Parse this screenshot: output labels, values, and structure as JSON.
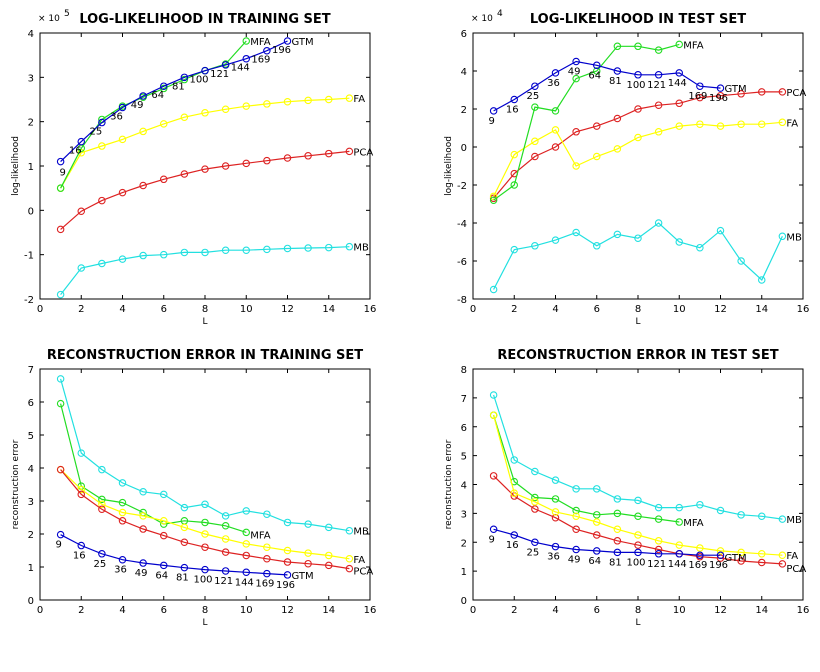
{
  "colors": {
    "GTM": "#0000cc",
    "MFA": "#22dd22",
    "FA": "#ffff00",
    "PCA": "#dd2222",
    "MB": "#22e0e0"
  },
  "chart_data": [
    {
      "type": "line",
      "title": "LOG-LIKELIHOOD IN TRAINING SET",
      "xlabel": "L",
      "ylabel": "log-likelihood",
      "y_exponent": "× 10",
      "y_exponent_power": "5",
      "xlim": [
        0,
        16
      ],
      "ylim": [
        -2,
        4
      ],
      "xticks": [
        0,
        2,
        4,
        6,
        8,
        10,
        12,
        14,
        16
      ],
      "yticks": [
        -2,
        -1,
        0,
        1,
        2,
        3,
        4
      ],
      "grid": false,
      "series": [
        {
          "name": "MB",
          "color_key": "MB",
          "x": [
            1,
            2,
            3,
            4,
            5,
            6,
            7,
            8,
            9,
            10,
            11,
            12,
            13,
            14,
            15
          ],
          "y": [
            -1.9,
            -1.3,
            -1.2,
            -1.1,
            -1.02,
            -1.0,
            -0.95,
            -0.95,
            -0.9,
            -0.9,
            -0.88,
            -0.86,
            -0.85,
            -0.84,
            -0.82
          ]
        },
        {
          "name": "PCA",
          "color_key": "PCA",
          "x": [
            1,
            2,
            3,
            4,
            5,
            6,
            7,
            8,
            9,
            10,
            11,
            12,
            13,
            14,
            15
          ],
          "y": [
            -0.43,
            -0.02,
            0.22,
            0.4,
            0.56,
            0.7,
            0.82,
            0.93,
            1.0,
            1.06,
            1.12,
            1.18,
            1.23,
            1.28,
            1.33
          ]
        },
        {
          "name": "FA",
          "color_key": "FA",
          "x": [
            1,
            2,
            3,
            4,
            5,
            6,
            7,
            8,
            9,
            10,
            11,
            12,
            13,
            14,
            15
          ],
          "y": [
            0.5,
            1.3,
            1.45,
            1.6,
            1.78,
            1.95,
            2.1,
            2.2,
            2.28,
            2.35,
            2.4,
            2.45,
            2.48,
            2.5,
            2.53
          ]
        },
        {
          "name": "MFA",
          "color_key": "MFA",
          "x": [
            1,
            2,
            3,
            4,
            5,
            6,
            7,
            8,
            9,
            10
          ],
          "y": [
            0.5,
            1.4,
            2.05,
            2.35,
            2.55,
            2.75,
            2.95,
            3.15,
            3.3,
            3.82
          ]
        },
        {
          "name": "GTM",
          "color_key": "GTM",
          "x": [
            1,
            2,
            3,
            4,
            5,
            6,
            7,
            8,
            9,
            10,
            11,
            12
          ],
          "y": [
            1.1,
            1.55,
            1.98,
            2.32,
            2.58,
            2.8,
            3.0,
            3.15,
            3.28,
            3.42,
            3.6,
            3.82
          ]
        }
      ],
      "point_labels": {
        "series": "GTM",
        "labels": [
          "9",
          "16",
          "25",
          "36",
          "49",
          "64",
          "81",
          "100",
          "121",
          "144",
          "169",
          "196"
        ]
      }
    },
    {
      "type": "line",
      "title": "LOG-LIKELIHOOD IN TEST SET",
      "xlabel": "L",
      "ylabel": "log-likelihood",
      "y_exponent": "× 10",
      "y_exponent_power": "4",
      "xlim": [
        0,
        16
      ],
      "ylim": [
        -8,
        6
      ],
      "xticks": [
        0,
        2,
        4,
        6,
        8,
        10,
        12,
        14,
        16
      ],
      "yticks": [
        -8,
        -6,
        -4,
        -2,
        0,
        2,
        4,
        6
      ],
      "grid": false,
      "series": [
        {
          "name": "MB",
          "color_key": "MB",
          "x": [
            1,
            2,
            3,
            4,
            5,
            6,
            7,
            8,
            9,
            10,
            11,
            12,
            13,
            14,
            15
          ],
          "y": [
            -7.5,
            -5.4,
            -5.2,
            -4.9,
            -4.5,
            -5.2,
            -4.6,
            -4.8,
            -4.0,
            -5.0,
            -5.3,
            -4.4,
            -6.0,
            -7.0,
            -4.7
          ]
        },
        {
          "name": "PCA",
          "color_key": "PCA",
          "x": [
            1,
            2,
            3,
            4,
            5,
            6,
            7,
            8,
            9,
            10,
            11,
            12,
            13,
            14,
            15
          ],
          "y": [
            -2.7,
            -1.4,
            -0.5,
            0.0,
            0.8,
            1.1,
            1.5,
            2.0,
            2.2,
            2.3,
            2.6,
            2.7,
            2.8,
            2.9,
            2.9
          ]
        },
        {
          "name": "FA",
          "color_key": "FA",
          "x": [
            1,
            2,
            3,
            4,
            5,
            6,
            7,
            8,
            9,
            10,
            11,
            12,
            13,
            14,
            15
          ],
          "y": [
            -2.6,
            -0.4,
            0.3,
            0.9,
            -1.0,
            -0.5,
            -0.1,
            0.5,
            0.8,
            1.1,
            1.2,
            1.1,
            1.2,
            1.2,
            1.3
          ]
        },
        {
          "name": "MFA",
          "color_key": "MFA",
          "x": [
            1,
            2,
            3,
            4,
            5,
            6,
            7,
            8,
            9,
            10
          ],
          "y": [
            -2.8,
            -2.0,
            2.1,
            1.9,
            3.6,
            4.0,
            5.3,
            5.3,
            5.1,
            5.4
          ]
        },
        {
          "name": "GTM",
          "color_key": "GTM",
          "x": [
            1,
            2,
            3,
            4,
            5,
            6,
            7,
            8,
            9,
            10,
            11,
            12
          ],
          "y": [
            1.9,
            2.5,
            3.2,
            3.9,
            4.5,
            4.3,
            4.0,
            3.8,
            3.8,
            3.9,
            3.2,
            3.1
          ]
        }
      ],
      "point_labels": {
        "series": "GTM",
        "labels": [
          "9",
          "16",
          "25",
          "36",
          "49",
          "64",
          "81",
          "100",
          "121",
          "144",
          "169",
          "196"
        ]
      }
    },
    {
      "type": "line",
      "title": "RECONSTRUCTION ERROR IN TRAINING SET",
      "xlabel": "L",
      "ylabel": "reconstruction error",
      "xlim": [
        0,
        16
      ],
      "ylim": [
        0,
        7
      ],
      "xticks": [
        0,
        2,
        4,
        6,
        8,
        10,
        12,
        14,
        16
      ],
      "yticks": [
        0,
        1,
        2,
        3,
        4,
        5,
        6,
        7
      ],
      "grid": false,
      "series": [
        {
          "name": "MB",
          "color_key": "MB",
          "x": [
            1,
            2,
            3,
            4,
            5,
            6,
            7,
            8,
            9,
            10,
            11,
            12,
            13,
            14,
            15
          ],
          "y": [
            6.7,
            4.45,
            3.95,
            3.55,
            3.28,
            3.2,
            2.8,
            2.9,
            2.55,
            2.7,
            2.6,
            2.35,
            2.3,
            2.2,
            2.1
          ]
        },
        {
          "name": "MFA",
          "color_key": "MFA",
          "x": [
            1,
            2,
            3,
            4,
            5,
            6,
            7,
            8,
            9,
            10
          ],
          "y": [
            5.95,
            3.45,
            3.05,
            2.95,
            2.65,
            2.3,
            2.4,
            2.35,
            2.25,
            2.05
          ]
        },
        {
          "name": "FA",
          "color_key": "FA",
          "x": [
            1,
            2,
            3,
            4,
            5,
            6,
            7,
            8,
            9,
            10,
            11,
            12,
            13,
            14,
            15
          ],
          "y": [
            3.95,
            3.35,
            2.9,
            2.65,
            2.55,
            2.4,
            2.2,
            2.0,
            1.85,
            1.7,
            1.6,
            1.5,
            1.42,
            1.35,
            1.25
          ]
        },
        {
          "name": "PCA",
          "color_key": "PCA",
          "x": [
            1,
            2,
            3,
            4,
            5,
            6,
            7,
            8,
            9,
            10,
            11,
            12,
            13,
            14,
            15
          ],
          "y": [
            3.95,
            3.2,
            2.75,
            2.4,
            2.15,
            1.95,
            1.75,
            1.6,
            1.45,
            1.35,
            1.25,
            1.15,
            1.1,
            1.05,
            0.95
          ]
        },
        {
          "name": "GTM",
          "color_key": "GTM",
          "x": [
            1,
            2,
            3,
            4,
            5,
            6,
            7,
            8,
            9,
            10,
            11,
            12
          ],
          "y": [
            1.98,
            1.65,
            1.4,
            1.22,
            1.12,
            1.05,
            0.98,
            0.92,
            0.88,
            0.84,
            0.8,
            0.76
          ]
        }
      ],
      "point_labels": {
        "series": "GTM",
        "labels": [
          "9",
          "16",
          "25",
          "36",
          "49",
          "64",
          "81",
          "100",
          "121",
          "144",
          "169",
          "196"
        ]
      }
    },
    {
      "type": "line",
      "title": "RECONSTRUCTION ERROR IN TEST SET",
      "xlabel": "L",
      "ylabel": "reconstruction error",
      "xlim": [
        0,
        16
      ],
      "ylim": [
        0,
        8
      ],
      "xticks": [
        0,
        2,
        4,
        6,
        8,
        10,
        12,
        14,
        16
      ],
      "yticks": [
        0,
        1,
        2,
        3,
        4,
        5,
        6,
        7,
        8
      ],
      "grid": false,
      "series": [
        {
          "name": "MB",
          "color_key": "MB",
          "x": [
            1,
            2,
            3,
            4,
            5,
            6,
            7,
            8,
            9,
            10,
            11,
            12,
            13,
            14,
            15
          ],
          "y": [
            7.1,
            4.85,
            4.45,
            4.15,
            3.85,
            3.85,
            3.5,
            3.45,
            3.2,
            3.2,
            3.3,
            3.1,
            2.95,
            2.9,
            2.8
          ]
        },
        {
          "name": "MFA",
          "color_key": "MFA",
          "x": [
            1,
            2,
            3,
            4,
            5,
            6,
            7,
            8,
            9,
            10
          ],
          "y": [
            6.4,
            4.1,
            3.55,
            3.5,
            3.1,
            2.95,
            3.0,
            2.9,
            2.8,
            2.7
          ]
        },
        {
          "name": "PCA",
          "color_key": "PCA",
          "x": [
            1,
            2,
            3,
            4,
            5,
            6,
            7,
            8,
            9,
            10,
            11,
            12,
            13,
            14,
            15
          ],
          "y": [
            4.3,
            3.6,
            3.15,
            2.85,
            2.45,
            2.25,
            2.05,
            1.9,
            1.75,
            1.6,
            1.5,
            1.45,
            1.35,
            1.3,
            1.25
          ]
        },
        {
          "name": "FA",
          "color_key": "FA",
          "x": [
            1,
            2,
            3,
            4,
            5,
            6,
            7,
            8,
            9,
            10,
            11,
            12,
            13,
            14,
            15
          ],
          "y": [
            6.4,
            3.7,
            3.4,
            3.05,
            2.9,
            2.7,
            2.45,
            2.25,
            2.05,
            1.9,
            1.8,
            1.7,
            1.65,
            1.6,
            1.55
          ]
        },
        {
          "name": "GTM",
          "color_key": "GTM",
          "x": [
            1,
            2,
            3,
            4,
            5,
            6,
            7,
            8,
            9,
            10,
            11,
            12
          ],
          "y": [
            2.45,
            2.25,
            2.0,
            1.85,
            1.75,
            1.7,
            1.65,
            1.65,
            1.6,
            1.6,
            1.55,
            1.55
          ]
        }
      ],
      "point_labels": {
        "series": "GTM",
        "labels": [
          "9",
          "16",
          "25",
          "36",
          "49",
          "64",
          "81",
          "100",
          "121",
          "144",
          "169",
          "196"
        ]
      }
    }
  ]
}
